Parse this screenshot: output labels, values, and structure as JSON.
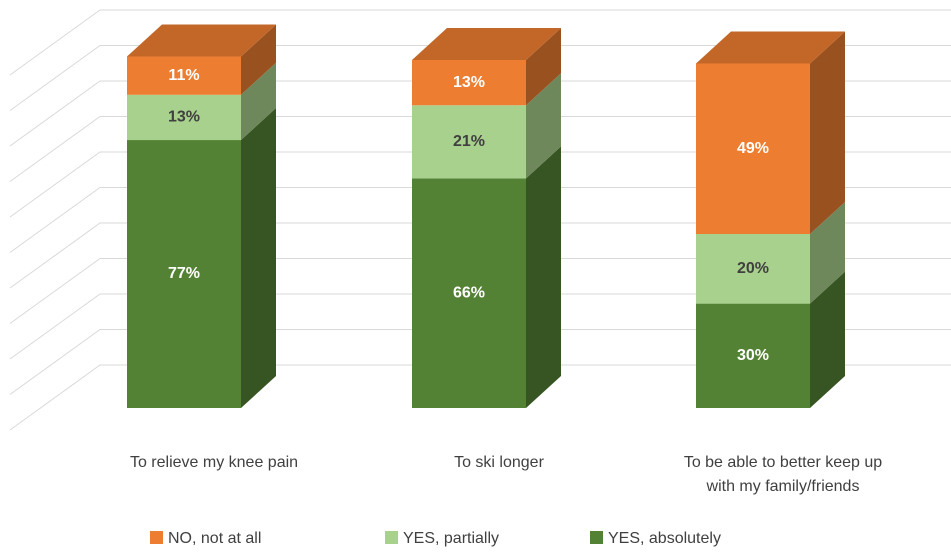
{
  "chart_data": {
    "type": "bar",
    "stacked": true,
    "three_d": true,
    "categories": [
      "To relieve my knee pain",
      "To ski longer",
      "To be able to better keep up with my family/friends"
    ],
    "series": [
      {
        "name": "NO, not at all",
        "color": "#ed7d31",
        "values": [
          11,
          13,
          49
        ],
        "value_labels": [
          "11%",
          "13%",
          "49%"
        ]
      },
      {
        "name": "YES, partially",
        "color": "#a9d18e",
        "values": [
          13,
          21,
          20
        ],
        "value_labels": [
          "13%",
          "21%",
          "20%"
        ]
      },
      {
        "name": "YES, absolutely",
        "color": "#548235",
        "values": [
          77,
          66,
          30
        ],
        "value_labels": [
          "77%",
          "66%",
          "30%"
        ]
      }
    ],
    "ylim": [
      0,
      100
    ],
    "yticks": [
      0,
      10,
      20,
      30,
      40,
      50,
      60,
      70,
      80,
      90,
      100
    ],
    "grid": true,
    "legend": "bottom"
  }
}
